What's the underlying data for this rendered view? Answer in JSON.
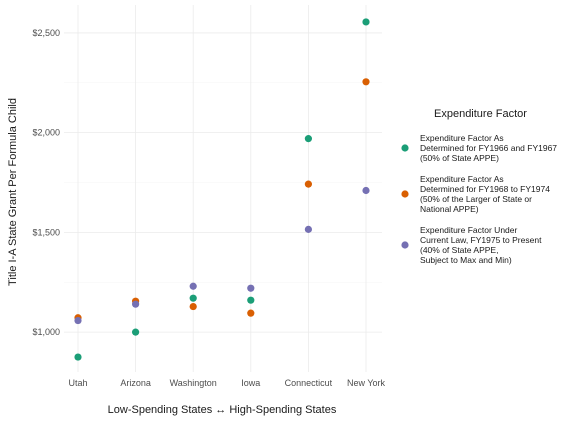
{
  "chart_data": {
    "type": "scatter",
    "xlabel": "Low-Spending States ↔ High-Spending States",
    "ylabel": "Title I-A State Grant Per Formula Child",
    "categories": [
      "Utah",
      "Arizona",
      "Washington",
      "Iowa",
      "Connecticut",
      "New York"
    ],
    "yticks": [
      {
        "value": 1000,
        "label": "$1,000"
      },
      {
        "value": 1500,
        "label": "$1,500"
      },
      {
        "value": 2000,
        "label": "$2,000"
      },
      {
        "value": 2500,
        "label": "$2,500"
      }
    ],
    "ylim": [
      800,
      2640
    ],
    "grid": true,
    "legend": {
      "title": "Expenditure Factor",
      "position": "right"
    },
    "series": [
      {
        "name_lines": [
          "Expenditure Factor As",
          "Determined for FY1966 and FY1967",
          "(50% of State APPE)"
        ],
        "color": "#1b9e77",
        "values": [
          875,
          1000,
          1170,
          1160,
          1970,
          2555
        ]
      },
      {
        "name_lines": [
          "Expenditure Factor As",
          "Determined for FY1968 to FY1974",
          "(50% of the Larger of State or",
          "National APPE)"
        ],
        "color": "#d95f02",
        "values": [
          1072,
          1155,
          1128,
          1095,
          1742,
          2255
        ]
      },
      {
        "name_lines": [
          "Expenditure Factor Under",
          "Current Law, FY1975 to Present",
          "(40% of State APPE,",
          "Subject to Max and Min)"
        ],
        "color": "#7570b3",
        "values": [
          1058,
          1140,
          1230,
          1220,
          1515,
          1710
        ]
      }
    ]
  }
}
